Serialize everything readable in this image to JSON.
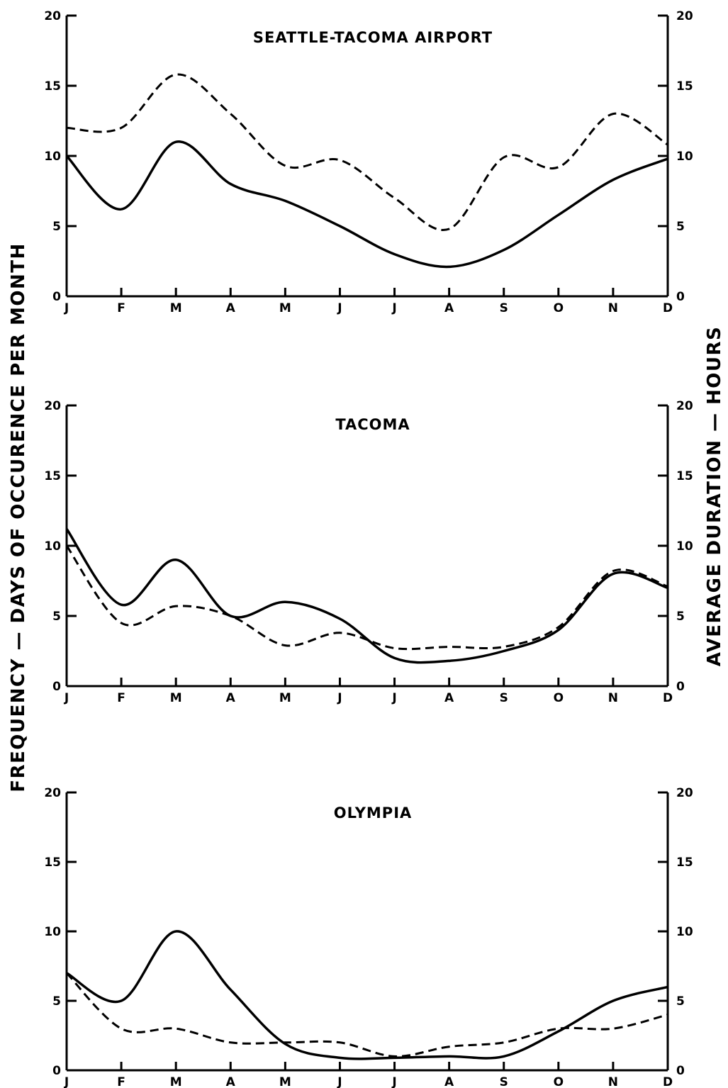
{
  "y_label_left": "FREQUENCY — DAYS OF OCCURENCE PER MONTH",
  "y_label_right": "AVERAGE DURATION — HOURS",
  "chart_data": [
    {
      "type": "line",
      "title": "SEATTLE-TACOMA AIRPORT",
      "categories": [
        "J",
        "F",
        "M",
        "A",
        "M",
        "J",
        "J",
        "A",
        "S",
        "O",
        "N",
        "D"
      ],
      "ylim": [
        0,
        20
      ],
      "yticks": [
        "0",
        "5",
        "10",
        "15",
        "20"
      ],
      "series": [
        {
          "style": "solid",
          "axis": "left",
          "values": [
            10,
            6.2,
            11,
            8,
            6.8,
            5,
            3,
            2.1,
            3.3,
            5.8,
            8.3,
            9.8
          ]
        },
        {
          "style": "dashed",
          "axis": "right",
          "values": [
            12,
            12,
            15.8,
            13,
            9.3,
            9.7,
            7,
            4.8,
            9.9,
            9.2,
            13,
            10.8
          ]
        }
      ]
    },
    {
      "type": "line",
      "title": "TACOMA",
      "categories": [
        "J",
        "F",
        "M",
        "A",
        "M",
        "J",
        "J",
        "A",
        "S",
        "O",
        "N",
        "D"
      ],
      "ylim": [
        0,
        20
      ],
      "yticks": [
        "0",
        "5",
        "10",
        "15",
        "20"
      ],
      "series": [
        {
          "style": "solid",
          "axis": "left",
          "values": [
            11.2,
            5.8,
            9,
            5,
            6,
            4.8,
            2,
            1.8,
            2.5,
            4,
            8,
            7
          ]
        },
        {
          "style": "dashed",
          "axis": "right",
          "values": [
            10,
            4.5,
            5.7,
            5,
            2.9,
            3.8,
            2.7,
            2.8,
            2.8,
            4.2,
            8.2,
            7.1
          ]
        }
      ]
    },
    {
      "type": "line",
      "title": "OLYMPIA",
      "categories": [
        "J",
        "F",
        "M",
        "A",
        "M",
        "J",
        "J",
        "A",
        "S",
        "O",
        "N",
        "D"
      ],
      "ylim": [
        0,
        20
      ],
      "yticks": [
        "0",
        "5",
        "10",
        "15",
        "20"
      ],
      "series": [
        {
          "style": "solid",
          "axis": "left",
          "values": [
            7,
            5,
            10,
            5.8,
            1.9,
            0.9,
            0.9,
            1,
            1,
            2.8,
            5,
            6
          ]
        },
        {
          "style": "dashed",
          "axis": "right",
          "values": [
            7,
            3,
            3,
            2,
            2,
            2,
            1,
            1.7,
            2,
            3,
            3,
            4
          ]
        }
      ]
    }
  ]
}
